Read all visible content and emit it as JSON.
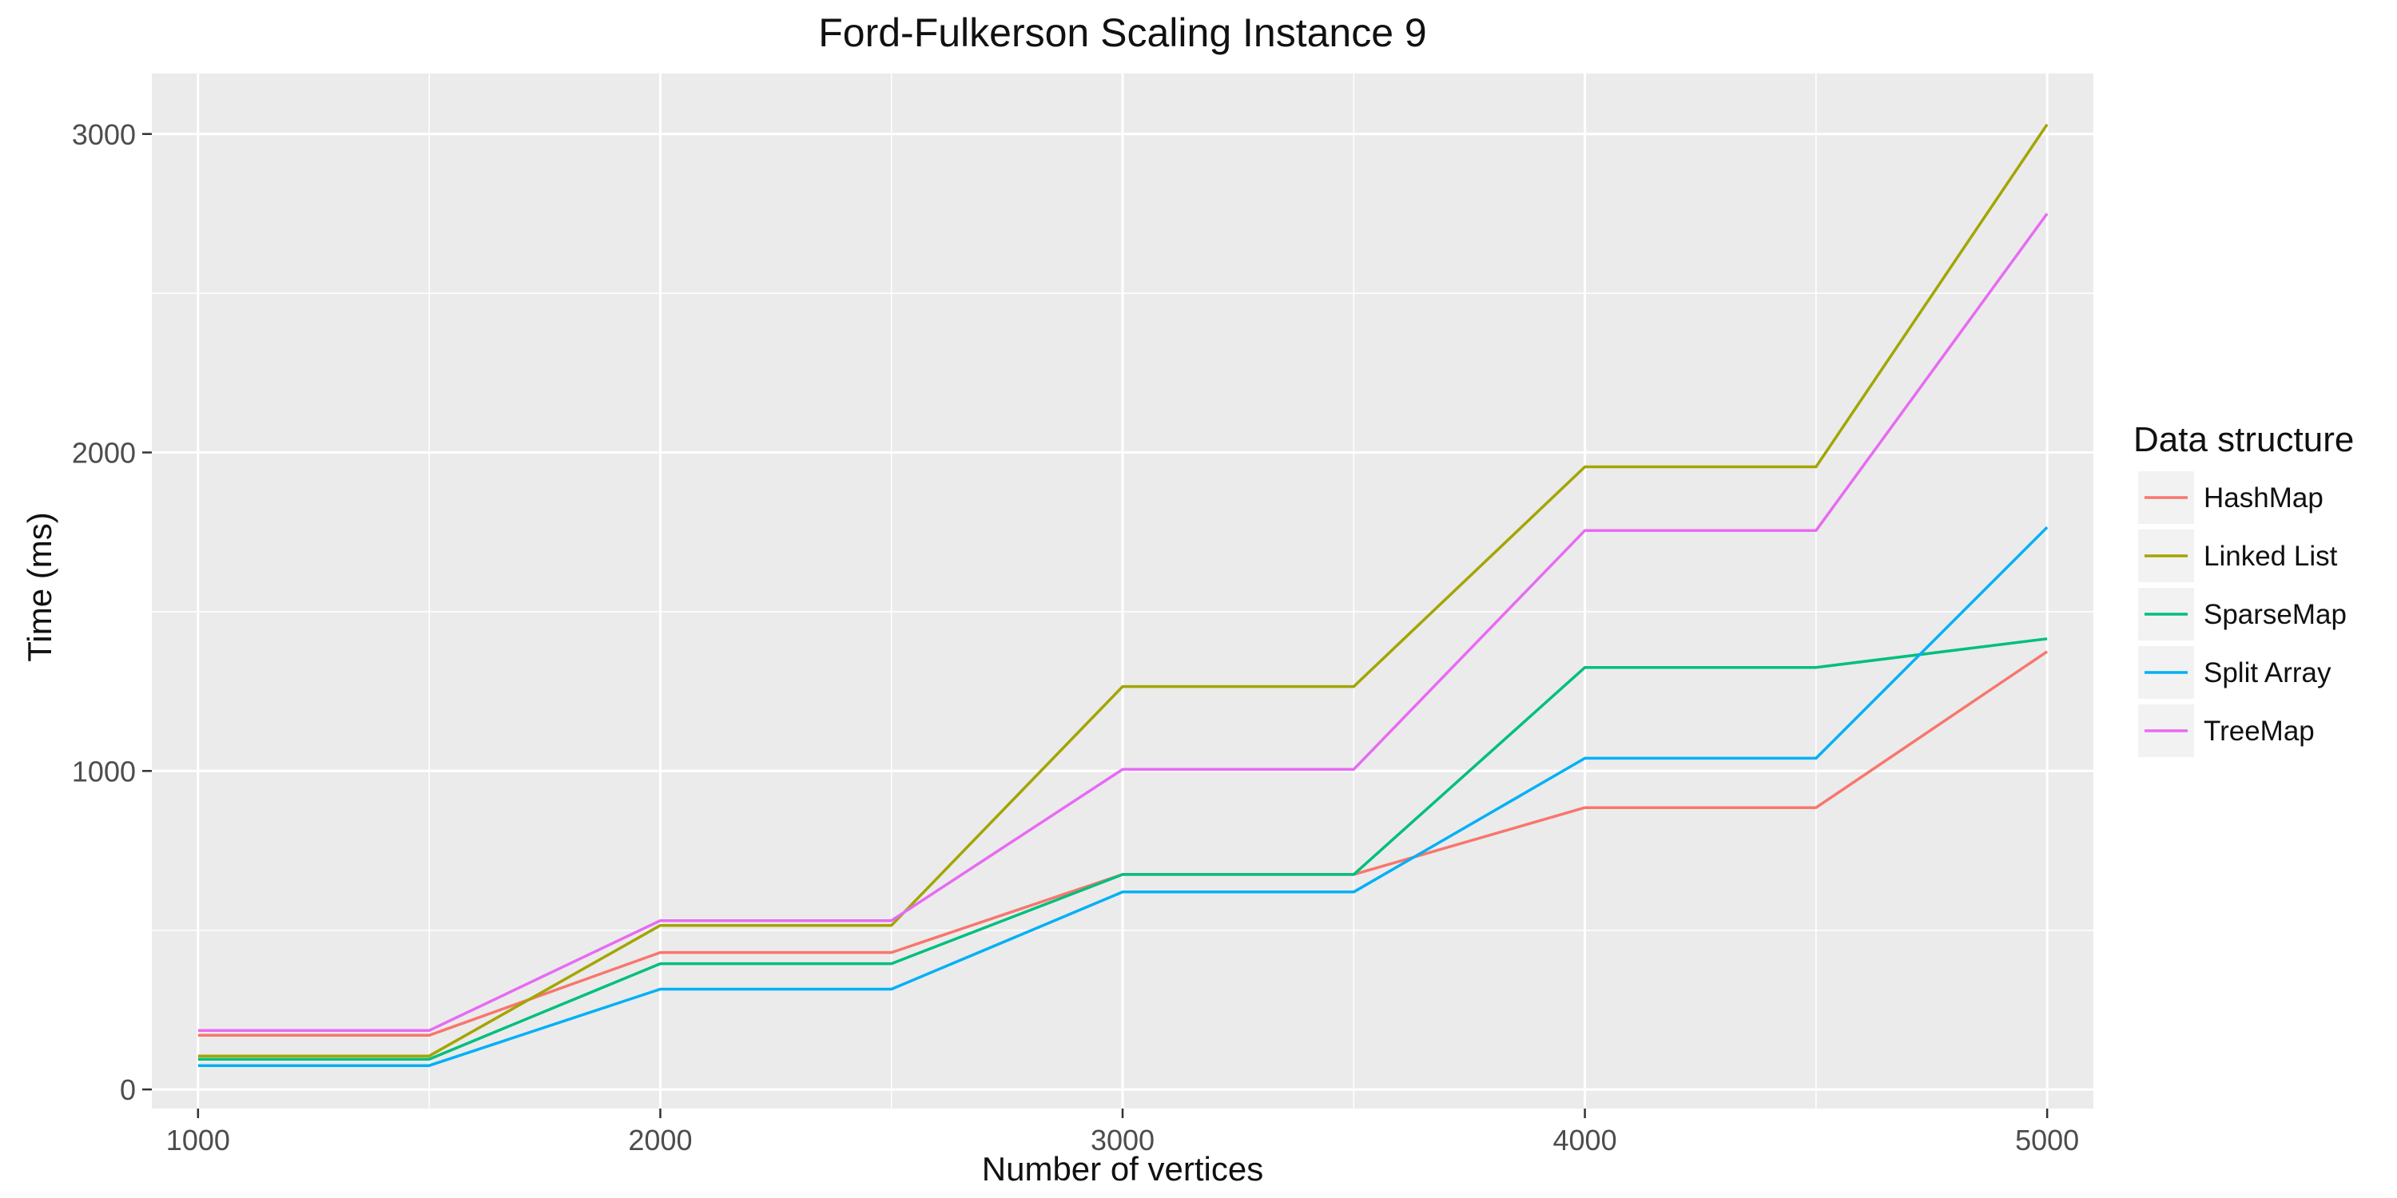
{
  "chart_data": {
    "type": "line",
    "title": "Ford-Fulkerson Scaling Instance 9",
    "xlabel": "Number of vertices",
    "ylabel": "Time (ms)",
    "x": [
      1000,
      1500,
      2000,
      2500,
      3000,
      3500,
      4000,
      4500,
      5000
    ],
    "xlim": [
      900,
      5100
    ],
    "ylim": [
      -60,
      3190
    ],
    "xticks": [
      1000,
      2000,
      3000,
      4000,
      5000
    ],
    "xminor": [
      1500,
      2500,
      3500,
      4500
    ],
    "yticks": [
      0,
      1000,
      2000,
      3000
    ],
    "yminor": [
      500,
      1500,
      2500
    ],
    "grid": true,
    "background": "#ebebeb",
    "legend": {
      "title": "Data structure",
      "position": "right"
    },
    "series": [
      {
        "name": "HashMap",
        "color": "#F8766D",
        "values": [
          170,
          170,
          430,
          430,
          675,
          675,
          885,
          885,
          1375
        ]
      },
      {
        "name": "Linked List",
        "color": "#A3A500",
        "values": [
          105,
          105,
          515,
          515,
          1265,
          1265,
          1955,
          1955,
          3030
        ]
      },
      {
        "name": "SparseMap",
        "color": "#00BF7D",
        "values": [
          95,
          95,
          395,
          395,
          675,
          675,
          1325,
          1325,
          1415
        ]
      },
      {
        "name": "Split Array",
        "color": "#00B0F6",
        "values": [
          75,
          75,
          315,
          315,
          620,
          620,
          1040,
          1040,
          1765
        ]
      },
      {
        "name": "TreeMap",
        "color": "#E76BF3",
        "values": [
          185,
          185,
          530,
          530,
          1005,
          1005,
          1755,
          1755,
          2750
        ]
      }
    ]
  }
}
